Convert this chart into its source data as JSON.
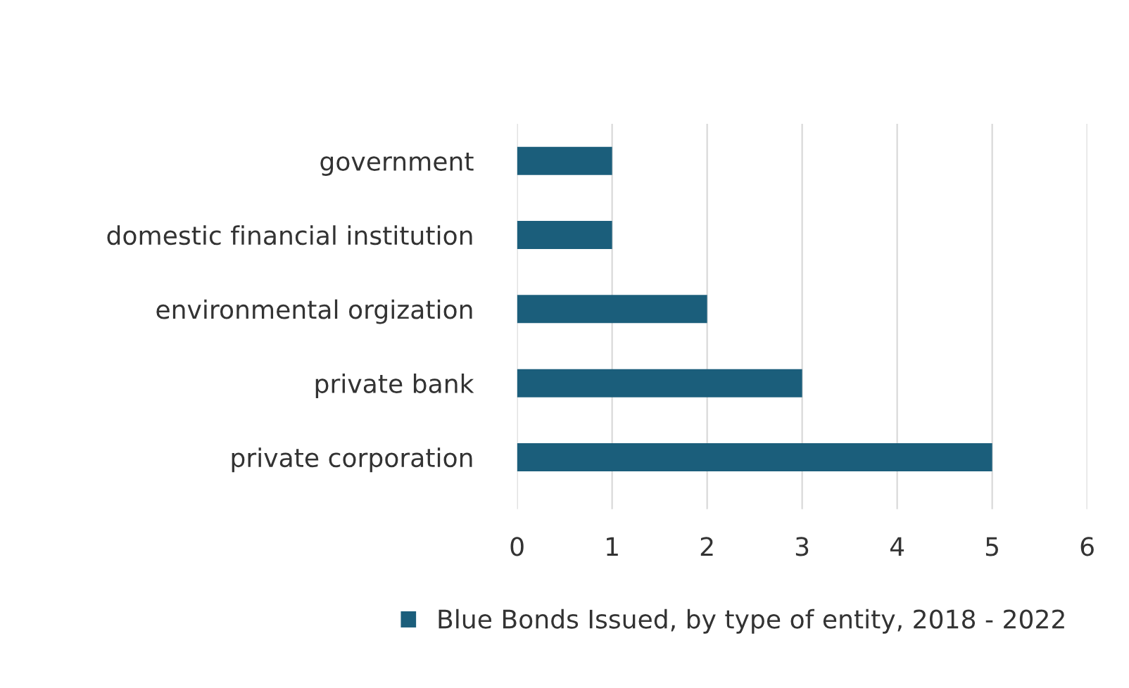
{
  "chart_data": {
    "type": "bar",
    "orientation": "horizontal",
    "categories": [
      "government",
      "domestic financial institution",
      "environmental orgization",
      "private bank",
      "private corporation"
    ],
    "series": [
      {
        "name": "Blue Bonds Issued, by type of entity, 2018 - 2022",
        "color": "#1b5e7b",
        "values": [
          1,
          1,
          2,
          3,
          5
        ]
      }
    ],
    "xlim": [
      0,
      6
    ],
    "xticks": [
      0,
      1,
      2,
      3,
      4,
      5,
      6
    ],
    "grid": "x",
    "legend": "bottom"
  }
}
